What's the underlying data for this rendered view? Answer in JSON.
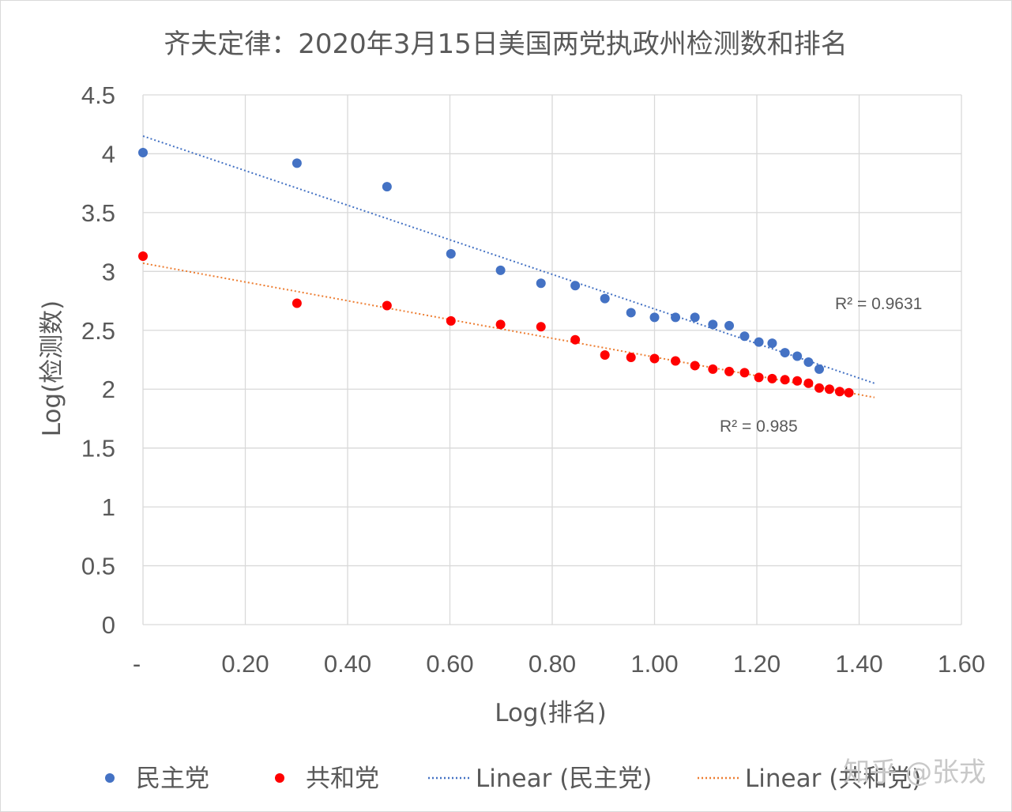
{
  "chart_data": {
    "type": "scatter",
    "title": "齐夫定律：2020年3月15日美国两党执政州检测数和排名",
    "xlabel": "Log(排名)",
    "ylabel": "Log(检测数)",
    "xlim": [
      0,
      1.6
    ],
    "ylim": [
      0,
      4.5
    ],
    "x_ticks": [
      0,
      0.2,
      0.4,
      0.6,
      0.8,
      1.0,
      1.2,
      1.4,
      1.6
    ],
    "x_tick_labels": [
      "-",
      "0.20",
      "0.40",
      "0.60",
      "0.80",
      "1.00",
      "1.20",
      "1.40",
      "1.60"
    ],
    "y_ticks": [
      0,
      0.5,
      1,
      1.5,
      2,
      2.5,
      3,
      3.5,
      4,
      4.5
    ],
    "y_tick_labels": [
      "0",
      "0.5",
      "1",
      "1.5",
      "2",
      "2.5",
      "3",
      "3.5",
      "4",
      "4.5"
    ],
    "grid": true,
    "legend_position": "bottom",
    "series": [
      {
        "name": "民主党",
        "color": "#4472c4",
        "x": [
          0,
          0.301,
          0.477,
          0.602,
          0.699,
          0.778,
          0.845,
          0.903,
          0.954,
          1.0,
          1.041,
          1.079,
          1.114,
          1.146,
          1.176,
          1.204,
          1.23,
          1.255,
          1.279,
          1.301,
          1.322
        ],
        "y": [
          4.01,
          3.92,
          3.72,
          3.15,
          3.01,
          2.9,
          2.88,
          2.77,
          2.65,
          2.61,
          2.61,
          2.61,
          2.55,
          2.54,
          2.45,
          2.4,
          2.39,
          2.31,
          2.28,
          2.23,
          2.17
        ]
      },
      {
        "name": "共和党",
        "color": "#ff0000",
        "x": [
          0,
          0.301,
          0.477,
          0.602,
          0.699,
          0.778,
          0.845,
          0.903,
          0.954,
          1.0,
          1.041,
          1.079,
          1.114,
          1.146,
          1.176,
          1.204,
          1.23,
          1.255,
          1.279,
          1.301,
          1.322,
          1.342,
          1.362,
          1.38
        ],
        "y": [
          3.13,
          2.73,
          2.71,
          2.58,
          2.55,
          2.53,
          2.42,
          2.29,
          2.27,
          2.26,
          2.24,
          2.2,
          2.17,
          2.15,
          2.14,
          2.1,
          2.09,
          2.08,
          2.07,
          2.05,
          2.01,
          2.0,
          1.98,
          1.97
        ]
      }
    ],
    "trendlines": [
      {
        "name": "Linear (民主党)",
        "type": "linear",
        "color": "#4472c4",
        "x_range": [
          0,
          1.43
        ],
        "y_range": [
          4.15,
          2.05
        ],
        "r2_label": "R² = 0.9631"
      },
      {
        "name": "Linear (共和党)",
        "type": "linear",
        "color": "#ed7d31",
        "x_range": [
          0,
          1.43
        ],
        "y_range": [
          3.07,
          1.93
        ],
        "r2_label": "R² = 0.985"
      }
    ]
  },
  "watermark": "知乎 @张戎"
}
